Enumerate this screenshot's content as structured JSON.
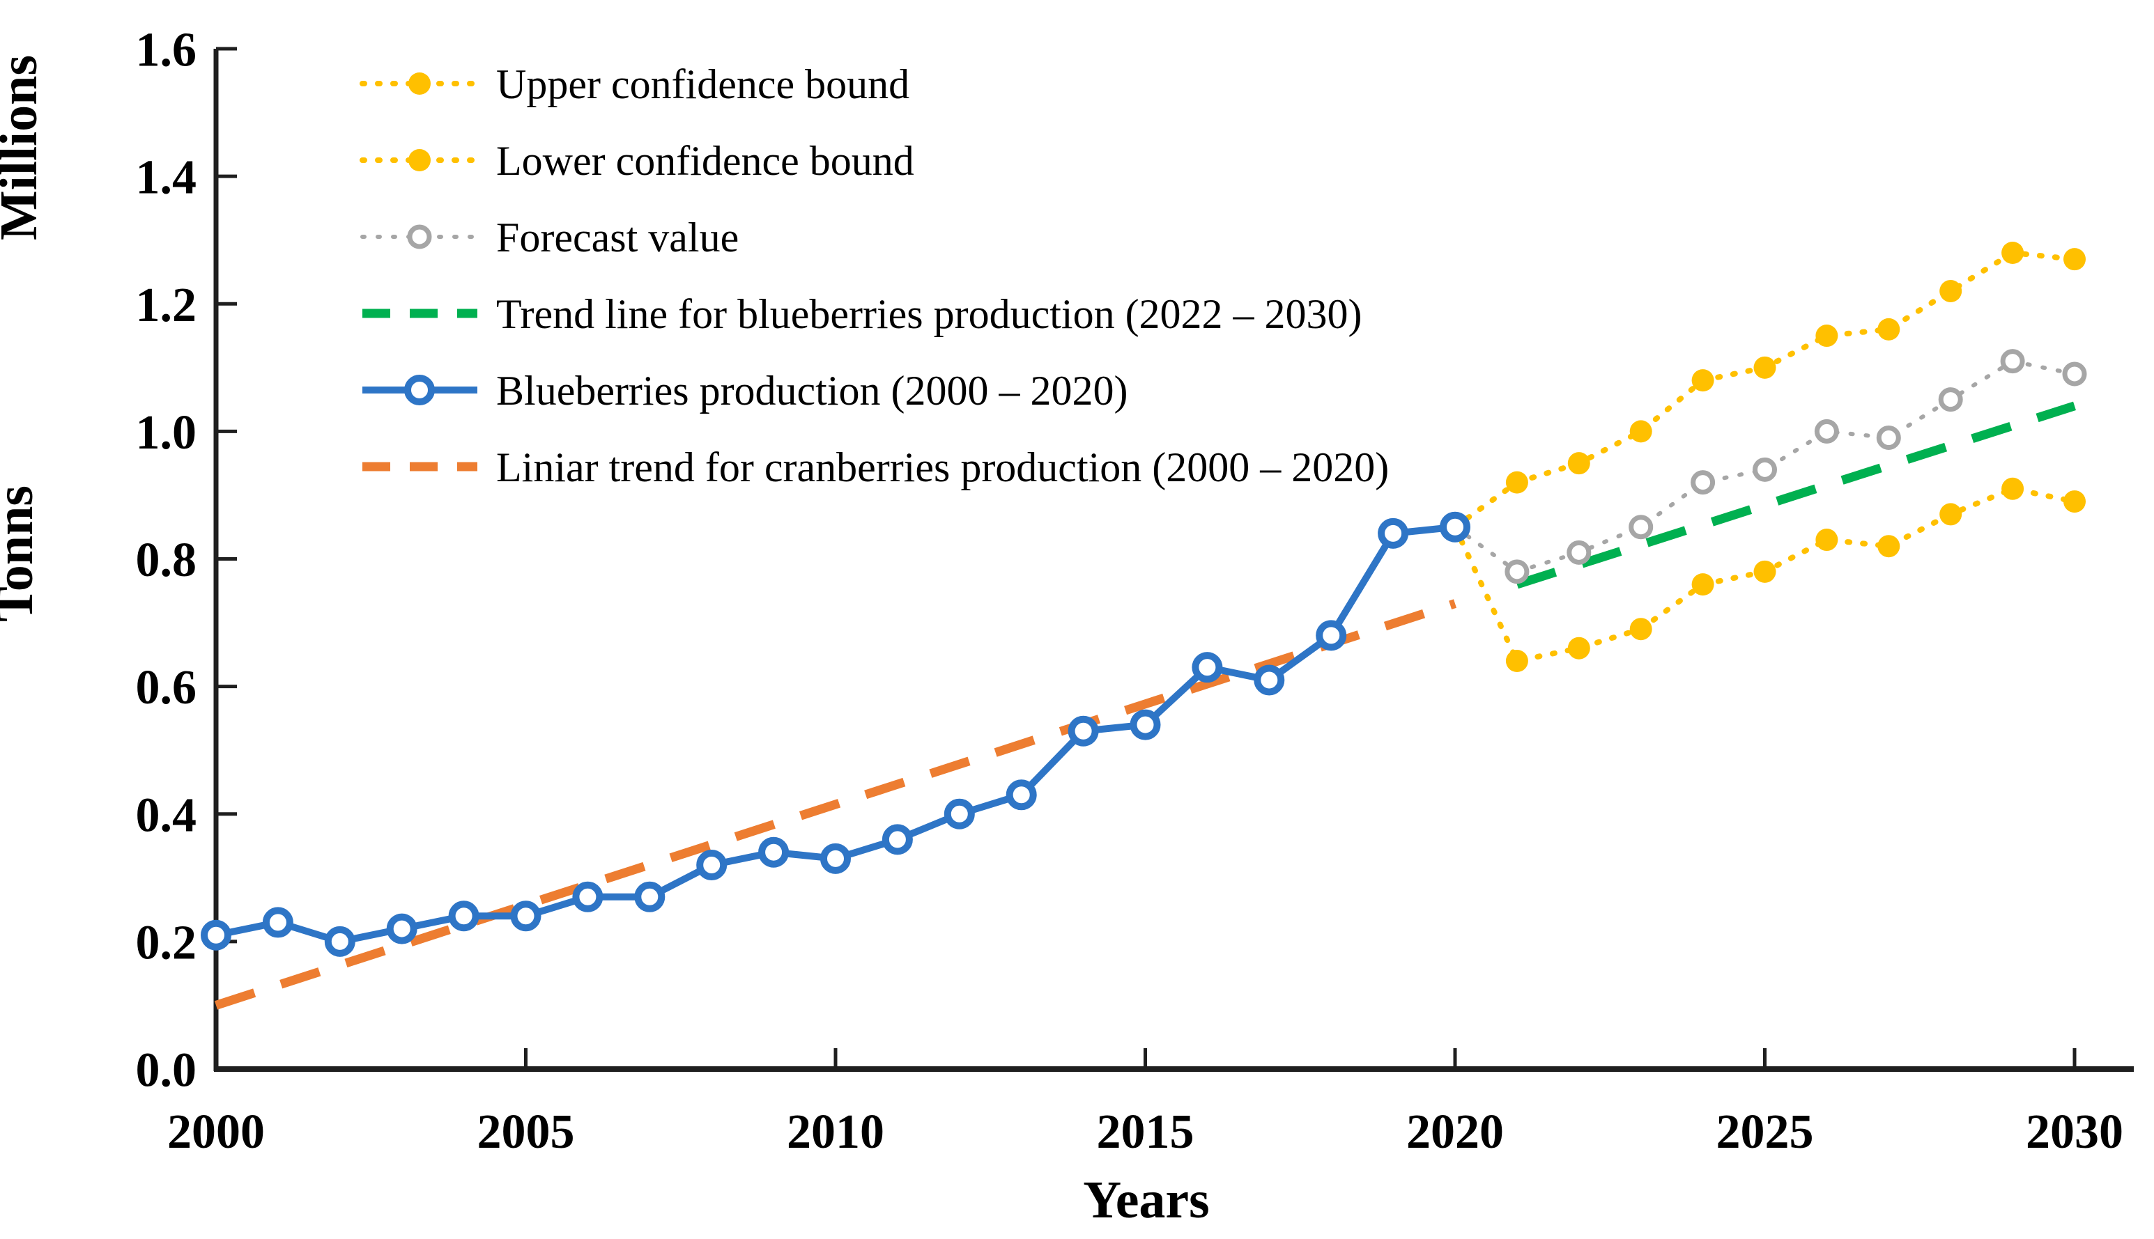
{
  "chart_data": {
    "type": "line",
    "x_axis": {
      "title": "Years",
      "min": 2000,
      "max": 2030,
      "ticks": [
        2000,
        2005,
        2010,
        2015,
        2020,
        2025,
        2030
      ]
    },
    "y_axis": {
      "unit_label": "Millions",
      "title": "Tonns",
      "min": 0.0,
      "max": 1.6,
      "tick_step": 0.2
    },
    "grid": "off",
    "legend_position": "top-left-inside",
    "series": [
      {
        "name": "Upper confidence bound",
        "color": "#FFC000",
        "line_style": "dotted",
        "marker": "filled-circle",
        "anchor_first_point": true,
        "x": [
          2020,
          2021,
          2022,
          2023,
          2024,
          2025,
          2026,
          2027,
          2028,
          2029,
          2030
        ],
        "values": [
          0.85,
          0.92,
          0.95,
          1.0,
          1.08,
          1.1,
          1.15,
          1.16,
          1.22,
          1.28,
          1.27
        ]
      },
      {
        "name": "Lower confidence bound",
        "color": "#FFC000",
        "line_style": "dotted",
        "marker": "filled-circle",
        "anchor_first_point": true,
        "x": [
          2020,
          2021,
          2022,
          2023,
          2024,
          2025,
          2026,
          2027,
          2028,
          2029,
          2030
        ],
        "values": [
          0.85,
          0.64,
          0.66,
          0.69,
          0.76,
          0.78,
          0.83,
          0.82,
          0.87,
          0.91,
          0.89
        ]
      },
      {
        "name": "Forecast value",
        "color": "#A6A6A6",
        "line_style": "dotted",
        "marker": "open-circle",
        "anchor_first_point": true,
        "x": [
          2020,
          2021,
          2022,
          2023,
          2024,
          2025,
          2026,
          2027,
          2028,
          2029,
          2030
        ],
        "values": [
          0.85,
          0.78,
          0.81,
          0.85,
          0.92,
          0.94,
          1.0,
          0.99,
          1.05,
          1.11,
          1.09
        ]
      },
      {
        "name": "Trend line for blueberries production (2022 – 2030)",
        "color": "#00B050",
        "line_style": "dashed",
        "marker": "none",
        "x": [
          2021,
          2030
        ],
        "values": [
          0.76,
          1.04
        ]
      },
      {
        "name": "Blueberries production (2000 – 2020)",
        "color": "#2E75C6",
        "line_style": "solid",
        "marker": "open-circle",
        "x": [
          2000,
          2001,
          2002,
          2003,
          2004,
          2005,
          2006,
          2007,
          2008,
          2009,
          2010,
          2011,
          2012,
          2013,
          2014,
          2015,
          2016,
          2017,
          2018,
          2019,
          2020
        ],
        "values": [
          0.21,
          0.23,
          0.2,
          0.22,
          0.24,
          0.24,
          0.27,
          0.27,
          0.32,
          0.34,
          0.33,
          0.36,
          0.4,
          0.43,
          0.53,
          0.54,
          0.63,
          0.61,
          0.68,
          0.84,
          0.85
        ]
      },
      {
        "name": "Liniar trend for cranberries production (2000 – 2020)",
        "color": "#ED7D31",
        "line_style": "dashed",
        "marker": "none",
        "x": [
          2000,
          2020
        ],
        "values": [
          0.1,
          0.73
        ]
      }
    ]
  }
}
